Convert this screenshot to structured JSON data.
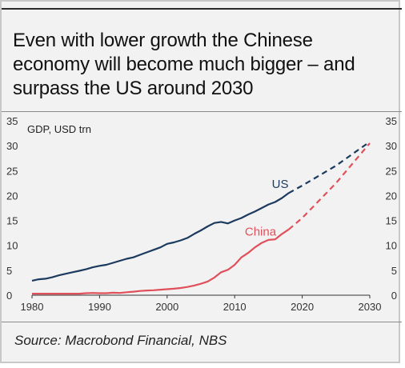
{
  "title": "Even with lower growth the Chinese economy will become much bigger – and surpass the US around 2030",
  "source": "Source: Macrobond Financial, NBS",
  "colors": {
    "us": "#1c3a5e",
    "china": "#e0505a",
    "axis": "#333333"
  },
  "chart_data": {
    "type": "line",
    "ylabel": "GDP, USD trn",
    "xlim": [
      1980,
      2030
    ],
    "ylim": [
      0,
      35
    ],
    "y_ticks": [
      "0",
      "5",
      "10",
      "15",
      "20",
      "25",
      "30",
      "35"
    ],
    "x_ticks": [
      "1980",
      "1990",
      "2000",
      "2010",
      "2020",
      "2030"
    ],
    "grid": false,
    "series": [
      {
        "name": "US",
        "x": [
          1980,
          1981,
          1982,
          1983,
          1984,
          1985,
          1986,
          1987,
          1988,
          1989,
          1990,
          1991,
          1992,
          1993,
          1994,
          1995,
          1996,
          1997,
          1998,
          1999,
          2000,
          2001,
          2002,
          2003,
          2004,
          2005,
          2006,
          2007,
          2008,
          2009,
          2010,
          2011,
          2012,
          2013,
          2014,
          2015,
          2016,
          2017,
          2018
        ],
        "values": [
          2.9,
          3.2,
          3.3,
          3.6,
          4.0,
          4.3,
          4.6,
          4.9,
          5.2,
          5.6,
          5.9,
          6.1,
          6.5,
          6.9,
          7.3,
          7.6,
          8.1,
          8.6,
          9.1,
          9.6,
          10.3,
          10.6,
          11.0,
          11.5,
          12.3,
          13.0,
          13.8,
          14.5,
          14.7,
          14.4,
          15.0,
          15.5,
          16.2,
          16.8,
          17.5,
          18.2,
          18.7,
          19.5,
          20.5
        ]
      },
      {
        "name": "US projection",
        "x": [
          2018,
          2020,
          2025,
          2030
        ],
        "values": [
          20.5,
          22.0,
          26.0,
          30.8
        ]
      },
      {
        "name": "China",
        "x": [
          1980,
          1981,
          1982,
          1983,
          1984,
          1985,
          1986,
          1987,
          1988,
          1989,
          1990,
          1991,
          1992,
          1993,
          1994,
          1995,
          1996,
          1997,
          1998,
          1999,
          2000,
          2001,
          2002,
          2003,
          2004,
          2005,
          2006,
          2007,
          2008,
          2009,
          2010,
          2011,
          2012,
          2013,
          2014,
          2015,
          2016,
          2017,
          2018
        ],
        "values": [
          0.3,
          0.3,
          0.3,
          0.3,
          0.3,
          0.3,
          0.3,
          0.3,
          0.4,
          0.45,
          0.4,
          0.4,
          0.5,
          0.45,
          0.6,
          0.7,
          0.85,
          0.95,
          1.0,
          1.1,
          1.2,
          1.3,
          1.45,
          1.65,
          1.95,
          2.3,
          2.75,
          3.55,
          4.6,
          5.1,
          6.1,
          7.6,
          8.5,
          9.6,
          10.5,
          11.1,
          11.2,
          12.3,
          13.2
        ]
      },
      {
        "name": "China projection",
        "x": [
          2018,
          2020,
          2025,
          2030
        ],
        "values": [
          13.2,
          15.5,
          22.5,
          30.5
        ]
      }
    ],
    "annotations": [
      {
        "text": "US",
        "x": 2015.5,
        "y": 21.5
      },
      {
        "text": "China",
        "x": 2011.5,
        "y": 12.0
      }
    ]
  }
}
